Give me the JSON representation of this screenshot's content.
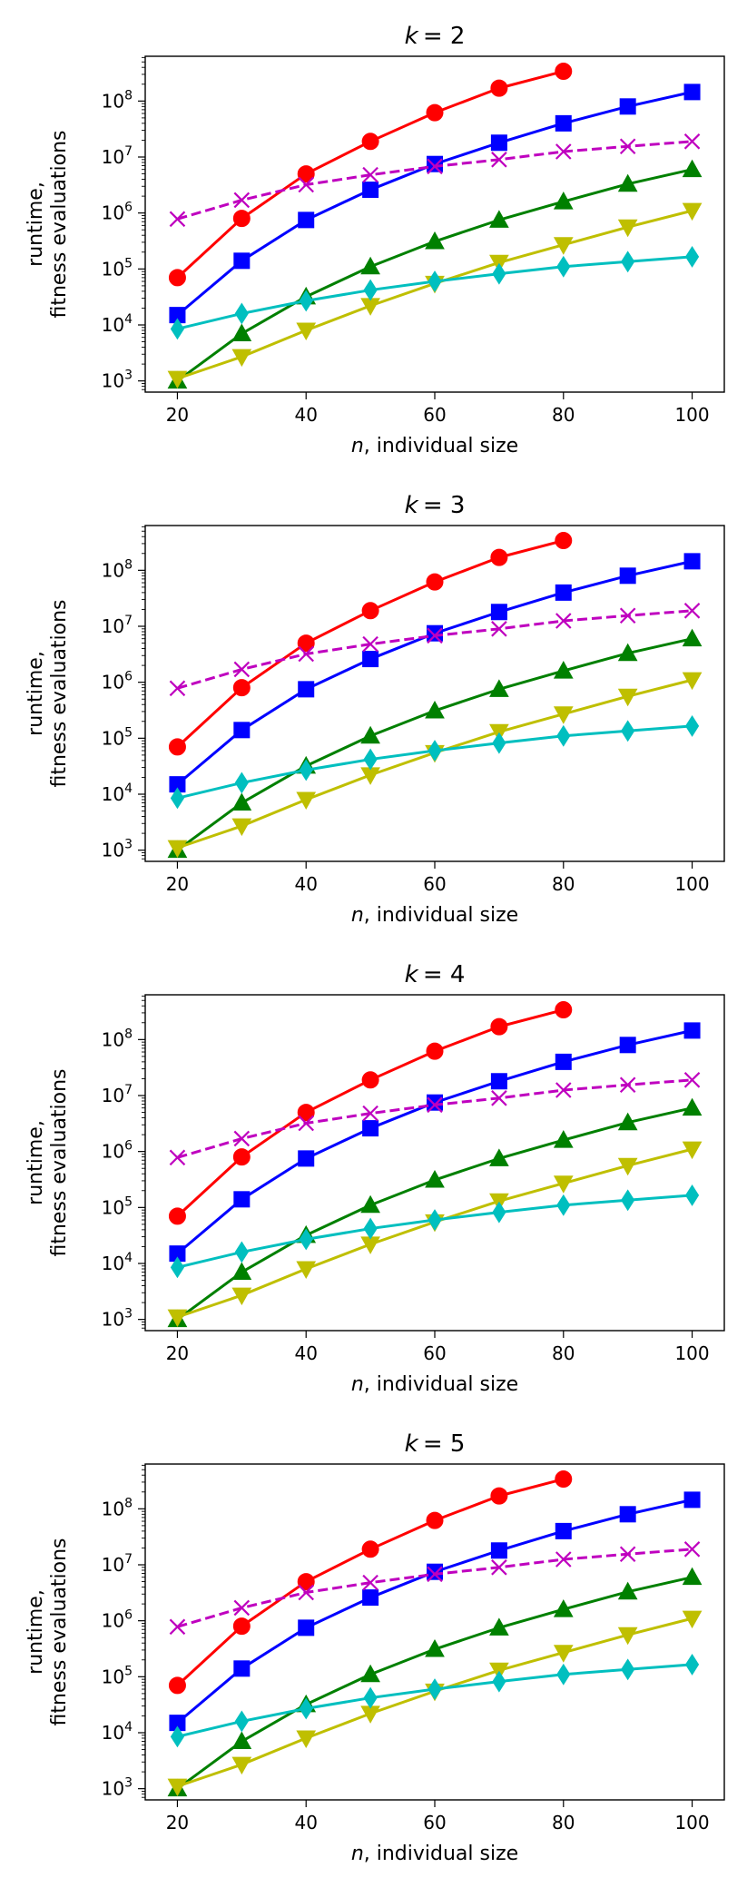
{
  "chart_data": [
    {
      "type": "line",
      "title_var": "k",
      "title_eq": "= 2",
      "xlabel_var": "n",
      "xlabel_rest": ", individual size",
      "ylabel_line1": "runtime,",
      "ylabel_line2": "fitness evaluations",
      "x_ticks": [
        20,
        40,
        60,
        80,
        100
      ],
      "xlim": [
        15,
        105
      ],
      "ylim_log10": [
        2.8,
        8.8
      ],
      "y_ticks": [
        {
          "base": "10",
          "exp": "3"
        },
        {
          "base": "10",
          "exp": "4"
        },
        {
          "base": "10",
          "exp": "5"
        },
        {
          "base": "10",
          "exp": "6"
        },
        {
          "base": "10",
          "exp": "7"
        },
        {
          "base": "10",
          "exp": "8"
        }
      ],
      "series": [
        {
          "color": "#ff0000",
          "marker": "circle",
          "dashed": false,
          "x": [
            20,
            30,
            40,
            50,
            60,
            70,
            80
          ],
          "y": [
            70000,
            800000,
            5000000,
            19000000,
            62000000,
            170000000,
            340000000
          ]
        },
        {
          "color": "#0000ff",
          "marker": "square",
          "dashed": false,
          "x": [
            20,
            30,
            40,
            50,
            60,
            70,
            80,
            90,
            100
          ],
          "y": [
            15000,
            140000,
            750000,
            2600000,
            7500000,
            18000000,
            40000000,
            80000000,
            145000000
          ]
        },
        {
          "color": "#bf00bf",
          "marker": "x",
          "dashed": true,
          "x": [
            20,
            30,
            40,
            50,
            60,
            70,
            80,
            90,
            100
          ],
          "y": [
            780000,
            1700000,
            3200000,
            4800000,
            6800000,
            9000000,
            12500000,
            15500000,
            19000000
          ]
        },
        {
          "color": "#008000",
          "marker": "triangle-up",
          "dashed": false,
          "x": [
            20,
            30,
            40,
            50,
            60,
            70,
            80,
            90,
            100
          ],
          "y": [
            1000,
            7000,
            32000,
            110000,
            310000,
            750000,
            1600000,
            3300000,
            6000000
          ]
        },
        {
          "color": "#bfbf00",
          "marker": "triangle-down",
          "dashed": false,
          "x": [
            20,
            30,
            40,
            50,
            60,
            70,
            80,
            90,
            100
          ],
          "y": [
            1100,
            2700,
            8000,
            22000,
            55000,
            130000,
            270000,
            560000,
            1100000
          ]
        },
        {
          "color": "#00bfbf",
          "marker": "diamond",
          "dashed": false,
          "x": [
            20,
            30,
            40,
            50,
            60,
            70,
            80,
            90,
            100
          ],
          "y": [
            8500,
            16000,
            27000,
            42000,
            60000,
            82000,
            110000,
            135000,
            165000
          ]
        }
      ]
    },
    {
      "type": "line",
      "title_var": "k",
      "title_eq": "= 3",
      "xlabel_var": "n",
      "xlabel_rest": ", individual size",
      "ylabel_line1": "runtime,",
      "ylabel_line2": "fitness evaluations",
      "x_ticks": [
        20,
        40,
        60,
        80,
        100
      ],
      "xlim": [
        15,
        105
      ],
      "ylim_log10": [
        2.8,
        8.8
      ],
      "y_ticks": [
        {
          "base": "10",
          "exp": "3"
        },
        {
          "base": "10",
          "exp": "4"
        },
        {
          "base": "10",
          "exp": "5"
        },
        {
          "base": "10",
          "exp": "6"
        },
        {
          "base": "10",
          "exp": "7"
        },
        {
          "base": "10",
          "exp": "8"
        }
      ],
      "series": [
        {
          "color": "#ff0000",
          "marker": "circle",
          "dashed": false,
          "x": [
            20,
            30,
            40,
            50,
            60,
            70,
            80
          ],
          "y": [
            70000,
            800000,
            5000000,
            19000000,
            62000000,
            170000000,
            340000000
          ]
        },
        {
          "color": "#0000ff",
          "marker": "square",
          "dashed": false,
          "x": [
            20,
            30,
            40,
            50,
            60,
            70,
            80,
            90,
            100
          ],
          "y": [
            15000,
            140000,
            750000,
            2600000,
            7500000,
            18000000,
            40000000,
            80000000,
            145000000
          ]
        },
        {
          "color": "#bf00bf",
          "marker": "x",
          "dashed": true,
          "x": [
            20,
            30,
            40,
            50,
            60,
            70,
            80,
            90,
            100
          ],
          "y": [
            780000,
            1700000,
            3200000,
            4800000,
            6800000,
            9000000,
            12500000,
            15500000,
            19000000
          ]
        },
        {
          "color": "#008000",
          "marker": "triangle-up",
          "dashed": false,
          "x": [
            20,
            30,
            40,
            50,
            60,
            70,
            80,
            90,
            100
          ],
          "y": [
            1000,
            7000,
            32000,
            110000,
            310000,
            750000,
            1600000,
            3300000,
            6000000
          ]
        },
        {
          "color": "#bfbf00",
          "marker": "triangle-down",
          "dashed": false,
          "x": [
            20,
            30,
            40,
            50,
            60,
            70,
            80,
            90,
            100
          ],
          "y": [
            1100,
            2700,
            8000,
            22000,
            55000,
            130000,
            270000,
            560000,
            1100000
          ]
        },
        {
          "color": "#00bfbf",
          "marker": "diamond",
          "dashed": false,
          "x": [
            20,
            30,
            40,
            50,
            60,
            70,
            80,
            90,
            100
          ],
          "y": [
            8500,
            16000,
            27000,
            42000,
            60000,
            82000,
            110000,
            135000,
            165000
          ]
        }
      ]
    },
    {
      "type": "line",
      "title_var": "k",
      "title_eq": "= 4",
      "xlabel_var": "n",
      "xlabel_rest": ", individual size",
      "ylabel_line1": "runtime,",
      "ylabel_line2": "fitness evaluations",
      "x_ticks": [
        20,
        40,
        60,
        80,
        100
      ],
      "xlim": [
        15,
        105
      ],
      "ylim_log10": [
        2.8,
        8.8
      ],
      "y_ticks": [
        {
          "base": "10",
          "exp": "3"
        },
        {
          "base": "10",
          "exp": "4"
        },
        {
          "base": "10",
          "exp": "5"
        },
        {
          "base": "10",
          "exp": "6"
        },
        {
          "base": "10",
          "exp": "7"
        },
        {
          "base": "10",
          "exp": "8"
        }
      ],
      "series": [
        {
          "color": "#ff0000",
          "marker": "circle",
          "dashed": false,
          "x": [
            20,
            30,
            40,
            50,
            60,
            70,
            80
          ],
          "y": [
            70000,
            800000,
            5000000,
            19000000,
            62000000,
            170000000,
            340000000
          ]
        },
        {
          "color": "#0000ff",
          "marker": "square",
          "dashed": false,
          "x": [
            20,
            30,
            40,
            50,
            60,
            70,
            80,
            90,
            100
          ],
          "y": [
            15000,
            140000,
            750000,
            2600000,
            7500000,
            18000000,
            40000000,
            80000000,
            145000000
          ]
        },
        {
          "color": "#bf00bf",
          "marker": "x",
          "dashed": true,
          "x": [
            20,
            30,
            40,
            50,
            60,
            70,
            80,
            90,
            100
          ],
          "y": [
            780000,
            1700000,
            3200000,
            4800000,
            6800000,
            9000000,
            12500000,
            15500000,
            19000000
          ]
        },
        {
          "color": "#008000",
          "marker": "triangle-up",
          "dashed": false,
          "x": [
            20,
            30,
            40,
            50,
            60,
            70,
            80,
            90,
            100
          ],
          "y": [
            1000,
            7000,
            32000,
            110000,
            310000,
            750000,
            1600000,
            3300000,
            6000000
          ]
        },
        {
          "color": "#bfbf00",
          "marker": "triangle-down",
          "dashed": false,
          "x": [
            20,
            30,
            40,
            50,
            60,
            70,
            80,
            90,
            100
          ],
          "y": [
            1100,
            2700,
            8000,
            22000,
            55000,
            130000,
            270000,
            560000,
            1100000
          ]
        },
        {
          "color": "#00bfbf",
          "marker": "diamond",
          "dashed": false,
          "x": [
            20,
            30,
            40,
            50,
            60,
            70,
            80,
            90,
            100
          ],
          "y": [
            8500,
            16000,
            27000,
            42000,
            60000,
            82000,
            110000,
            135000,
            165000
          ]
        }
      ]
    },
    {
      "type": "line",
      "title_var": "k",
      "title_eq": "= 5",
      "xlabel_var": "n",
      "xlabel_rest": ", individual size",
      "ylabel_line1": "runtime,",
      "ylabel_line2": "fitness evaluations",
      "x_ticks": [
        20,
        40,
        60,
        80,
        100
      ],
      "xlim": [
        15,
        105
      ],
      "ylim_log10": [
        2.8,
        8.8
      ],
      "y_ticks": [
        {
          "base": "10",
          "exp": "3"
        },
        {
          "base": "10",
          "exp": "4"
        },
        {
          "base": "10",
          "exp": "5"
        },
        {
          "base": "10",
          "exp": "6"
        },
        {
          "base": "10",
          "exp": "7"
        },
        {
          "base": "10",
          "exp": "8"
        }
      ],
      "series": [
        {
          "color": "#ff0000",
          "marker": "circle",
          "dashed": false,
          "x": [
            20,
            30,
            40,
            50,
            60,
            70,
            80
          ],
          "y": [
            70000,
            800000,
            5000000,
            19000000,
            62000000,
            170000000,
            340000000
          ]
        },
        {
          "color": "#0000ff",
          "marker": "square",
          "dashed": false,
          "x": [
            20,
            30,
            40,
            50,
            60,
            70,
            80,
            90,
            100
          ],
          "y": [
            15000,
            140000,
            750000,
            2600000,
            7500000,
            18000000,
            40000000,
            80000000,
            145000000
          ]
        },
        {
          "color": "#bf00bf",
          "marker": "x",
          "dashed": true,
          "x": [
            20,
            30,
            40,
            50,
            60,
            70,
            80,
            90,
            100
          ],
          "y": [
            780000,
            1700000,
            3200000,
            4800000,
            6800000,
            9000000,
            12500000,
            15500000,
            19000000
          ]
        },
        {
          "color": "#008000",
          "marker": "triangle-up",
          "dashed": false,
          "x": [
            20,
            30,
            40,
            50,
            60,
            70,
            80,
            90,
            100
          ],
          "y": [
            1000,
            7000,
            32000,
            110000,
            310000,
            750000,
            1600000,
            3300000,
            6000000
          ]
        },
        {
          "color": "#bfbf00",
          "marker": "triangle-down",
          "dashed": false,
          "x": [
            20,
            30,
            40,
            50,
            60,
            70,
            80,
            90,
            100
          ],
          "y": [
            1100,
            2700,
            8000,
            22000,
            55000,
            130000,
            270000,
            560000,
            1100000
          ]
        },
        {
          "color": "#00bfbf",
          "marker": "diamond",
          "dashed": false,
          "x": [
            20,
            30,
            40,
            50,
            60,
            70,
            80,
            90,
            100
          ],
          "y": [
            8500,
            16000,
            27000,
            42000,
            60000,
            82000,
            110000,
            135000,
            165000
          ]
        }
      ]
    }
  ]
}
